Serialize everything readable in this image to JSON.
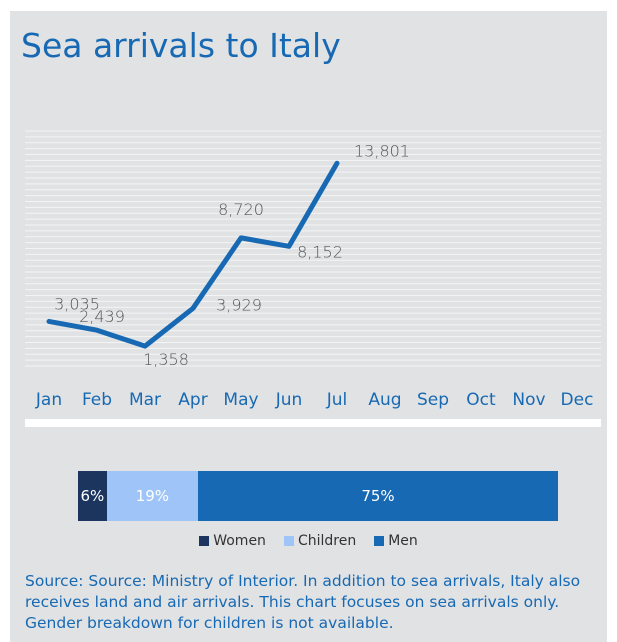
{
  "title": "Sea arrivals to Italy",
  "chart_data": [
    {
      "type": "line",
      "title": "Sea arrivals to Italy",
      "categories": [
        "Jan",
        "Feb",
        "Mar",
        "Apr",
        "May",
        "Jun",
        "Jul",
        "Aug",
        "Sep",
        "Oct",
        "Nov",
        "Dec"
      ],
      "series": [
        {
          "values": [
            3035,
            2439,
            1358,
            3929,
            8720,
            8152,
            13801,
            null,
            null,
            null,
            null,
            null
          ]
        }
      ],
      "data_labels": [
        "3,035",
        "2,439",
        "1,358",
        "3,929",
        "8,720",
        "8,152",
        "13,801"
      ],
      "ylim": [
        0,
        16000
      ],
      "grid": true,
      "color": "#1769b3"
    },
    {
      "type": "bar",
      "stacked": true,
      "orientation": "horizontal",
      "categories": [
        "Women",
        "Children",
        "Men"
      ],
      "values": [
        6,
        19,
        75
      ],
      "labels": [
        "6%",
        "19%",
        "75%"
      ],
      "colors": [
        "#1b355f",
        "#9fc5f8",
        "#1769b3"
      ],
      "legend": "bottom"
    }
  ],
  "source": "Source: Source: Ministry of Interior. In addition to sea arrivals, Italy also receives land and air arrivals. This chart focuses on sea arrivals only.  Gender breakdown for children is not available."
}
